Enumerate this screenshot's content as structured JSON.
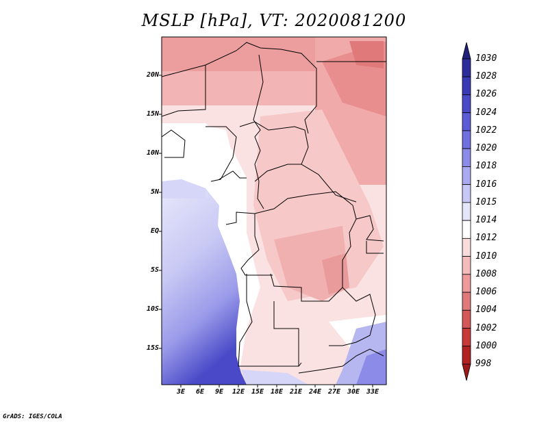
{
  "title": "MSLP [hPa], VT: 2020081200",
  "credit": "GrADS: IGES/COLA",
  "axes": {
    "y_ticks": [
      "20N",
      "15N",
      "10N",
      "5N",
      "EQ",
      "5S",
      "10S",
      "15S"
    ],
    "x_ticks": [
      "3E",
      "6E",
      "9E",
      "12E",
      "15E",
      "18E",
      "21E",
      "24E",
      "27E",
      "30E",
      "33E"
    ]
  },
  "colorbar": {
    "levels": [
      "1030",
      "1028",
      "1026",
      "1024",
      "1022",
      "1020",
      "1018",
      "1016",
      "1015",
      "1014",
      "1012",
      "1010",
      "1008",
      "1006",
      "1004",
      "1002",
      "1000",
      "998"
    ],
    "colors": [
      "#20207a",
      "#2c2c9a",
      "#3a3ab6",
      "#4a4ac8",
      "#5c5cd6",
      "#7070e0",
      "#8c8ce8",
      "#aaaaf0",
      "#c8c8f6",
      "#e6e6fb",
      "#ffffff",
      "#fadcdc",
      "#f4bcbc",
      "#ec9a9a",
      "#e07a7a",
      "#d45858",
      "#c83a3a",
      "#b22222",
      "#9a1a1a"
    ]
  },
  "map": {
    "region": "Central Africa",
    "variable": "Mean sea level pressure",
    "units": "hPa",
    "valid_time": "2020081200"
  }
}
